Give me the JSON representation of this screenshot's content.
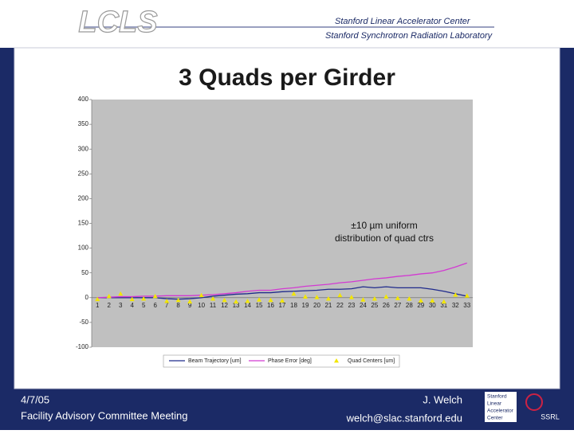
{
  "header": {
    "logo": "LCLS",
    "org_1": "Stanford Linear Accelerator Center",
    "org_2": "Stanford Synchrotron Radiation Laboratory"
  },
  "chart_data": {
    "type": "line",
    "title": "3 Quads per Girder",
    "annotation": [
      "±10 µm uniform",
      "distribution of quad ctrs"
    ],
    "categories": [
      "1",
      "2",
      "3",
      "4",
      "5",
      "6",
      "7",
      "8",
      "9",
      "10",
      "11",
      "12",
      "13",
      "14",
      "15",
      "16",
      "17",
      "18",
      "19",
      "20",
      "21",
      "22",
      "23",
      "24",
      "25",
      "26",
      "27",
      "28",
      "29",
      "30",
      "31",
      "32",
      "33"
    ],
    "series": [
      {
        "name": "Beam Trajectory [um]",
        "color": "#1f2a8c",
        "marker": "none",
        "values": [
          0,
          0,
          0,
          0,
          0,
          0,
          -2,
          -3,
          -2,
          0,
          3,
          5,
          7,
          8,
          10,
          10,
          12,
          13,
          14,
          15,
          17,
          17,
          18,
          22,
          20,
          22,
          20,
          20,
          20,
          17,
          13,
          8,
          3
        ]
      },
      {
        "name": "Phase Error [deg]",
        "color": "#d23ad2",
        "marker": "none",
        "values": [
          0,
          1,
          2,
          2,
          3,
          3,
          4,
          4,
          4,
          5,
          6,
          8,
          10,
          13,
          15,
          15,
          18,
          20,
          23,
          25,
          27,
          30,
          32,
          35,
          38,
          40,
          43,
          45,
          48,
          50,
          55,
          62,
          70
        ]
      },
      {
        "name": "Quad Centers [um]",
        "color": "#f2e600",
        "marker": "triangle",
        "values": [
          -3,
          3,
          8,
          -3,
          -2,
          3,
          -7,
          -5,
          -8,
          5,
          -2,
          -5,
          -8,
          -7,
          -4,
          -5,
          -6,
          8,
          2,
          1,
          -2,
          5,
          1,
          -4,
          -2,
          2,
          -1,
          -2,
          -6,
          -6,
          -8,
          6,
          4
        ]
      }
    ],
    "ylim": [
      -100,
      400
    ],
    "yticks": [
      -100,
      -50,
      0,
      50,
      100,
      150,
      200,
      250,
      300,
      350,
      400
    ],
    "grid": false,
    "legend": "bottom"
  },
  "footer": {
    "date": "4/7/05",
    "meeting": "Facility Advisory Committee Meeting",
    "author": "J. Welch",
    "email": "welch@slac.stanford.edu",
    "logo_lines": [
      "Stanford",
      "Linear",
      "Accelerator",
      "Center"
    ],
    "logo_2": "SSRL"
  }
}
